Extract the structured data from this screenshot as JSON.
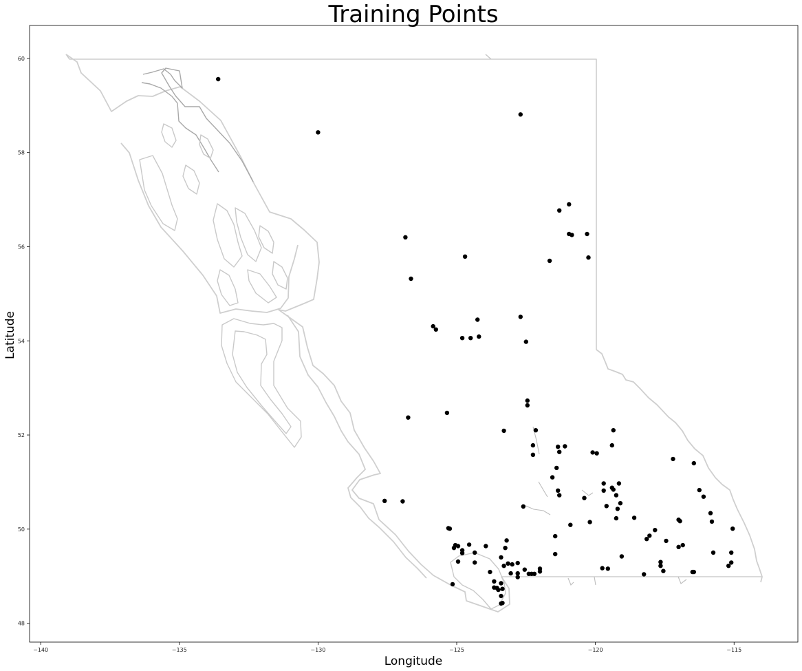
{
  "chart_data": {
    "type": "scatter",
    "title": "Training Points",
    "xlabel": "Longitude",
    "ylabel": "Latitude",
    "xlim": [
      -140.4,
      -112.7
    ],
    "ylim": [
      47.6,
      60.7
    ],
    "xticks": [
      -140,
      -135,
      -130,
      -125,
      -120,
      -115
    ],
    "yticks": [
      48,
      50,
      52,
      54,
      56,
      58,
      60
    ],
    "xtick_labels": [
      "−140",
      "−135",
      "−130",
      "−125",
      "−120",
      "−115"
    ],
    "ytick_labels": [
      "48",
      "50",
      "52",
      "54",
      "56",
      "58",
      "60"
    ],
    "grid": false,
    "legend": "none",
    "background_map": "British Columbia outline",
    "colors": {
      "points": "#000000",
      "map_outline": "#cfcfcf"
    },
    "points": [
      [
        -133.6,
        59.56
      ],
      [
        -130.0,
        58.43
      ],
      [
        -122.7,
        58.81
      ],
      [
        -121.3,
        56.77
      ],
      [
        -120.95,
        56.9
      ],
      [
        -120.95,
        56.27
      ],
      [
        -120.85,
        56.25
      ],
      [
        -120.3,
        56.27
      ],
      [
        -120.25,
        55.77
      ],
      [
        -121.65,
        55.7
      ],
      [
        -126.85,
        56.2
      ],
      [
        -124.7,
        55.79
      ],
      [
        -126.65,
        55.32
      ],
      [
        -125.85,
        54.31
      ],
      [
        -125.75,
        54.24
      ],
      [
        -124.25,
        54.45
      ],
      [
        -124.8,
        54.06
      ],
      [
        -124.5,
        54.06
      ],
      [
        -124.2,
        54.09
      ],
      [
        -122.7,
        54.51
      ],
      [
        -122.5,
        53.98
      ],
      [
        -122.45,
        52.73
      ],
      [
        -122.45,
        52.63
      ],
      [
        -126.75,
        52.37
      ],
      [
        -125.35,
        52.47
      ],
      [
        -123.3,
        52.09
      ],
      [
        -122.15,
        52.1
      ],
      [
        -122.25,
        51.78
      ],
      [
        -122.25,
        51.58
      ],
      [
        -121.35,
        51.75
      ],
      [
        -121.3,
        51.64
      ],
      [
        -121.1,
        51.76
      ],
      [
        -121.55,
        51.1
      ],
      [
        -121.4,
        51.3
      ],
      [
        -121.35,
        50.82
      ],
      [
        -121.3,
        50.72
      ],
      [
        -120.1,
        51.63
      ],
      [
        -119.95,
        51.61
      ],
      [
        -119.35,
        52.1
      ],
      [
        -119.4,
        51.78
      ],
      [
        -119.7,
        50.97
      ],
      [
        -119.7,
        50.82
      ],
      [
        -119.4,
        50.88
      ],
      [
        -119.35,
        50.84
      ],
      [
        -119.15,
        50.97
      ],
      [
        -119.25,
        50.72
      ],
      [
        -119.1,
        50.55
      ],
      [
        -119.2,
        50.43
      ],
      [
        -119.6,
        50.49
      ],
      [
        -119.25,
        50.23
      ],
      [
        -120.4,
        50.66
      ],
      [
        -120.9,
        50.09
      ],
      [
        -120.2,
        50.15
      ],
      [
        -118.6,
        50.24
      ],
      [
        -127.6,
        50.6
      ],
      [
        -126.95,
        50.59
      ],
      [
        -122.6,
        50.48
      ],
      [
        -125.3,
        50.02
      ],
      [
        -125.25,
        50.01
      ],
      [
        -125.05,
        49.66
      ],
      [
        -124.95,
        49.64
      ],
      [
        -125.1,
        49.6
      ],
      [
        -124.8,
        49.55
      ],
      [
        -124.8,
        49.49
      ],
      [
        -124.95,
        49.31
      ],
      [
        -124.55,
        49.67
      ],
      [
        -124.35,
        49.5
      ],
      [
        -124.35,
        49.29
      ],
      [
        -123.95,
        49.64
      ],
      [
        -125.15,
        48.83
      ],
      [
        -123.4,
        49.4
      ],
      [
        -123.3,
        49.22
      ],
      [
        -123.15,
        49.27
      ],
      [
        -123.0,
        49.25
      ],
      [
        -122.8,
        49.28
      ],
      [
        -123.05,
        49.06
      ],
      [
        -122.8,
        49.06
      ],
      [
        -122.55,
        49.14
      ],
      [
        -122.4,
        49.05
      ],
      [
        -122.3,
        49.05
      ],
      [
        -122.2,
        49.05
      ],
      [
        -122.0,
        49.1
      ],
      [
        -122.0,
        49.16
      ],
      [
        -122.8,
        48.98
      ],
      [
        -123.2,
        49.76
      ],
      [
        -123.25,
        49.6
      ],
      [
        -121.45,
        49.85
      ],
      [
        -121.45,
        49.47
      ],
      [
        -123.8,
        49.09
      ],
      [
        -123.65,
        48.89
      ],
      [
        -123.65,
        48.76
      ],
      [
        -123.55,
        48.75
      ],
      [
        -123.5,
        48.71
      ],
      [
        -123.4,
        48.85
      ],
      [
        -123.35,
        48.73
      ],
      [
        -123.4,
        48.58
      ],
      [
        -123.35,
        48.43
      ],
      [
        -123.4,
        48.42
      ],
      [
        -119.75,
        49.17
      ],
      [
        -119.55,
        49.16
      ],
      [
        -119.05,
        49.42
      ],
      [
        -118.25,
        49.04
      ],
      [
        -118.15,
        49.79
      ],
      [
        -118.05,
        49.86
      ],
      [
        -117.85,
        49.98
      ],
      [
        -117.65,
        49.3
      ],
      [
        -117.65,
        49.22
      ],
      [
        -117.55,
        49.11
      ],
      [
        -117.45,
        49.75
      ],
      [
        -117.2,
        51.49
      ],
      [
        -117.0,
        50.2
      ],
      [
        -116.95,
        50.17
      ],
      [
        -117.0,
        49.62
      ],
      [
        -116.85,
        49.66
      ],
      [
        -116.5,
        49.09
      ],
      [
        -116.45,
        49.09
      ],
      [
        -116.45,
        51.4
      ],
      [
        -116.25,
        50.83
      ],
      [
        -116.1,
        50.69
      ],
      [
        -115.85,
        50.34
      ],
      [
        -115.8,
        50.16
      ],
      [
        -115.75,
        49.5
      ],
      [
        -115.05,
        50.01
      ],
      [
        -115.2,
        49.22
      ],
      [
        -115.1,
        49.29
      ],
      [
        -115.1,
        49.5
      ]
    ]
  }
}
